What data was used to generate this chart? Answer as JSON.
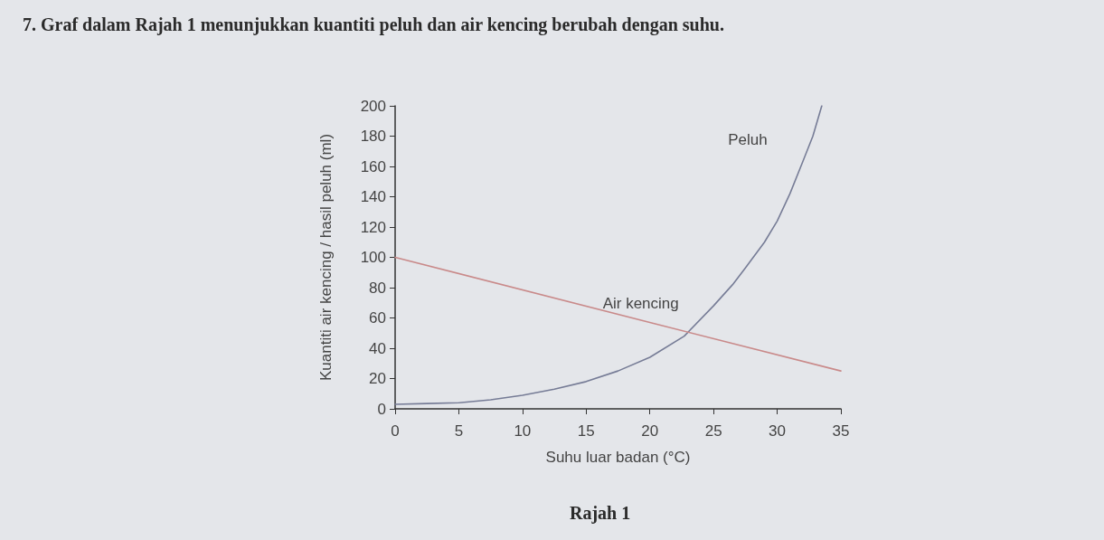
{
  "chart_data": {
    "type": "line",
    "title": "7. Graf dalam Rajah 1 menunjukkan kuantiti peluh dan air kencing berubah dengan suhu.",
    "xlabel": "Suhu luar badan (°C)",
    "ylabel": "Kuantiti air kencing / hasil peluh (ml)",
    "annotations": [
      "Rajah 1"
    ],
    "series": [
      {
        "name": "Peluh",
        "color": "#767c96",
        "x": [
          0,
          2.5,
          5,
          7.5,
          10,
          12.5,
          15,
          17.5,
          20,
          22.7,
          25,
          26.5,
          27.5,
          29,
          30,
          31,
          32,
          32.8,
          33.5
        ],
        "values": [
          3,
          3.5,
          4,
          6,
          9,
          13,
          18,
          25,
          34,
          48,
          68,
          82,
          93,
          110,
          124,
          142,
          163,
          180,
          200
        ]
      },
      {
        "name": "Air kencing",
        "color": "#c98a8a",
        "x": [
          0,
          20,
          35
        ],
        "values": [
          100,
          57,
          25
        ]
      }
    ],
    "xlim": [
      0,
      35
    ],
    "xticks": [
      0,
      5,
      10,
      15,
      20,
      25,
      30,
      35
    ],
    "ylim": [
      0,
      200
    ],
    "yticks": [
      0,
      20,
      40,
      60,
      80,
      100,
      120,
      140,
      160,
      180,
      200
    ],
    "grid": false,
    "legend": false,
    "marker": "none",
    "line_style": "solid"
  }
}
